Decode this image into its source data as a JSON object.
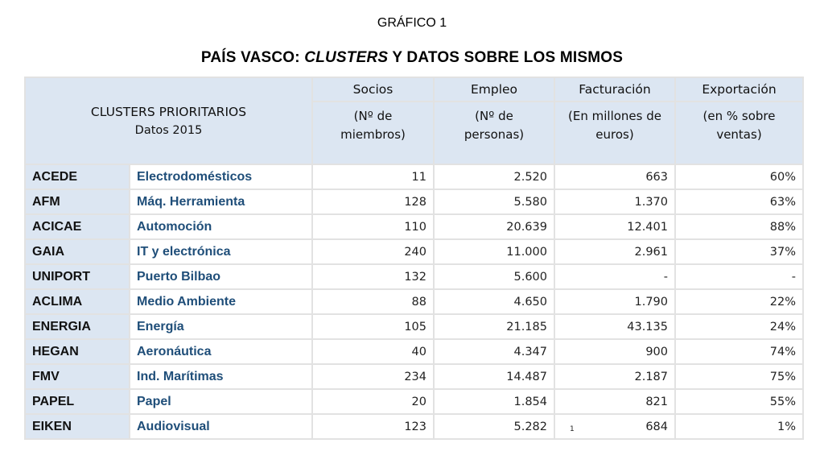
{
  "supertitle": "GRÁFICO 1",
  "title": {
    "prefix": "PAÍS VASCO: ",
    "italic": "CLUSTERS",
    "suffix": " Y DATOS SOBRE LOS MISMOS"
  },
  "header": {
    "main": "CLUSTERS PRIORITARIOS",
    "main_sub": "Datos 2015",
    "columns": [
      {
        "label": "Socios",
        "sub1": "(Nº de",
        "sub2": "miembros)"
      },
      {
        "label": "Empleo",
        "sub1": "(Nº de",
        "sub2": "personas)"
      },
      {
        "label": "Facturación",
        "sub1": "(En millones de",
        "sub2": "euros)"
      },
      {
        "label": "Exportación",
        "sub1": "(en % sobre",
        "sub2": "ventas)"
      }
    ]
  },
  "rows": [
    {
      "code": "ACEDE",
      "sector": "Electrodomésticos",
      "socios": "11",
      "empleo": "2.520",
      "facturacion": "663",
      "exportacion": "60%"
    },
    {
      "code": "AFM",
      "sector": "Máq. Herramienta",
      "socios": "128",
      "empleo": "5.580",
      "facturacion": "1.370",
      "exportacion": "63%"
    },
    {
      "code": "ACICAE",
      "sector": "Automoción",
      "socios": "110",
      "empleo": "20.639",
      "facturacion": "12.401",
      "exportacion": "88%"
    },
    {
      "code": "GAIA",
      "sector": "IT y electrónica",
      "socios": "240",
      "empleo": "11.000",
      "facturacion": "2.961",
      "exportacion": "37%"
    },
    {
      "code": "UNIPORT",
      "sector": "Puerto Bilbao",
      "socios": "132",
      "empleo": "5.600",
      "facturacion": "-",
      "exportacion": "-"
    },
    {
      "code": "ACLIMA",
      "sector": "Medio Ambiente",
      "socios": "88",
      "empleo": "4.650",
      "facturacion": "1.790",
      "exportacion": "22%"
    },
    {
      "code": "ENERGIA",
      "sector": "Energía",
      "socios": "105",
      "empleo": "21.185",
      "facturacion": "43.135",
      "exportacion": "24%"
    },
    {
      "code": "HEGAN",
      "sector": "Aeronáutica",
      "socios": "40",
      "empleo": "4.347",
      "facturacion": "900",
      "exportacion": "74%"
    },
    {
      "code": "FMV",
      "sector": "Ind. Marítimas",
      "socios": "234",
      "empleo": "14.487",
      "facturacion": "2.187",
      "exportacion": "75%"
    },
    {
      "code": "PAPEL",
      "sector": "Papel",
      "socios": "20",
      "empleo": "1.854",
      "facturacion": "821",
      "exportacion": "55%"
    },
    {
      "code": "EIKEN",
      "sector": "Audiovisual",
      "socios": "123",
      "empleo": "5.282",
      "facturacion": "684",
      "facturacion_note": "1",
      "exportacion": "1%"
    }
  ]
}
